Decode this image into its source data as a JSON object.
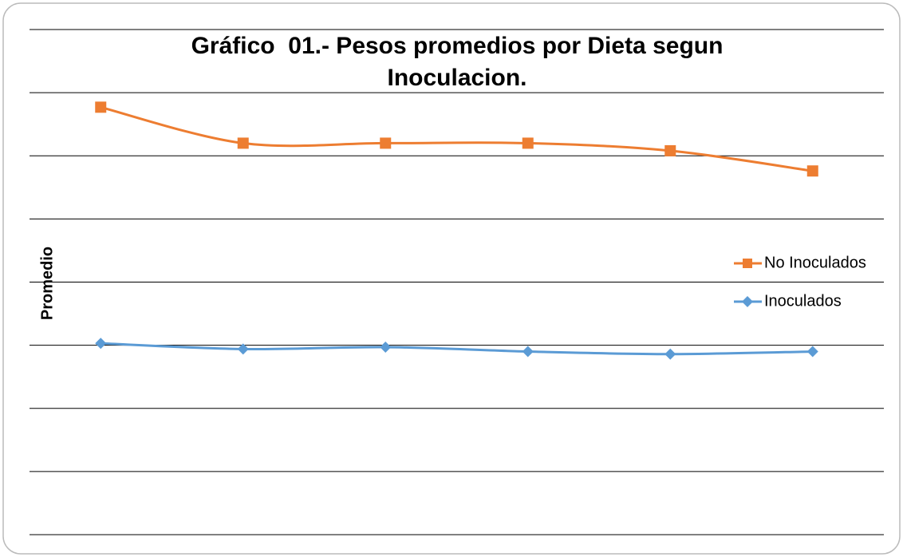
{
  "chart_data": {
    "type": "line",
    "title": "Gráfico  01.- Pesos promedios por Dieta segun Inoculacion.",
    "y_label": "Promedio",
    "categories": [
      null,
      null,
      null,
      null,
      null,
      null
    ],
    "series": [
      {
        "name": "No Inoculados",
        "color": "#ED7D31",
        "marker": "square",
        "values": [
          6.77,
          6.2,
          6.2,
          6.2,
          6.08,
          5.76
        ]
      },
      {
        "name": "Inoculados",
        "color": "#5B9BD5",
        "marker": "diamond",
        "values": [
          3.03,
          2.94,
          2.97,
          2.9,
          2.86,
          2.9
        ]
      }
    ],
    "ylim": [
      0,
      8
    ],
    "yticks": [
      0,
      1,
      2,
      3,
      4,
      5,
      6,
      7,
      8
    ],
    "grid": true,
    "legend": "right"
  }
}
